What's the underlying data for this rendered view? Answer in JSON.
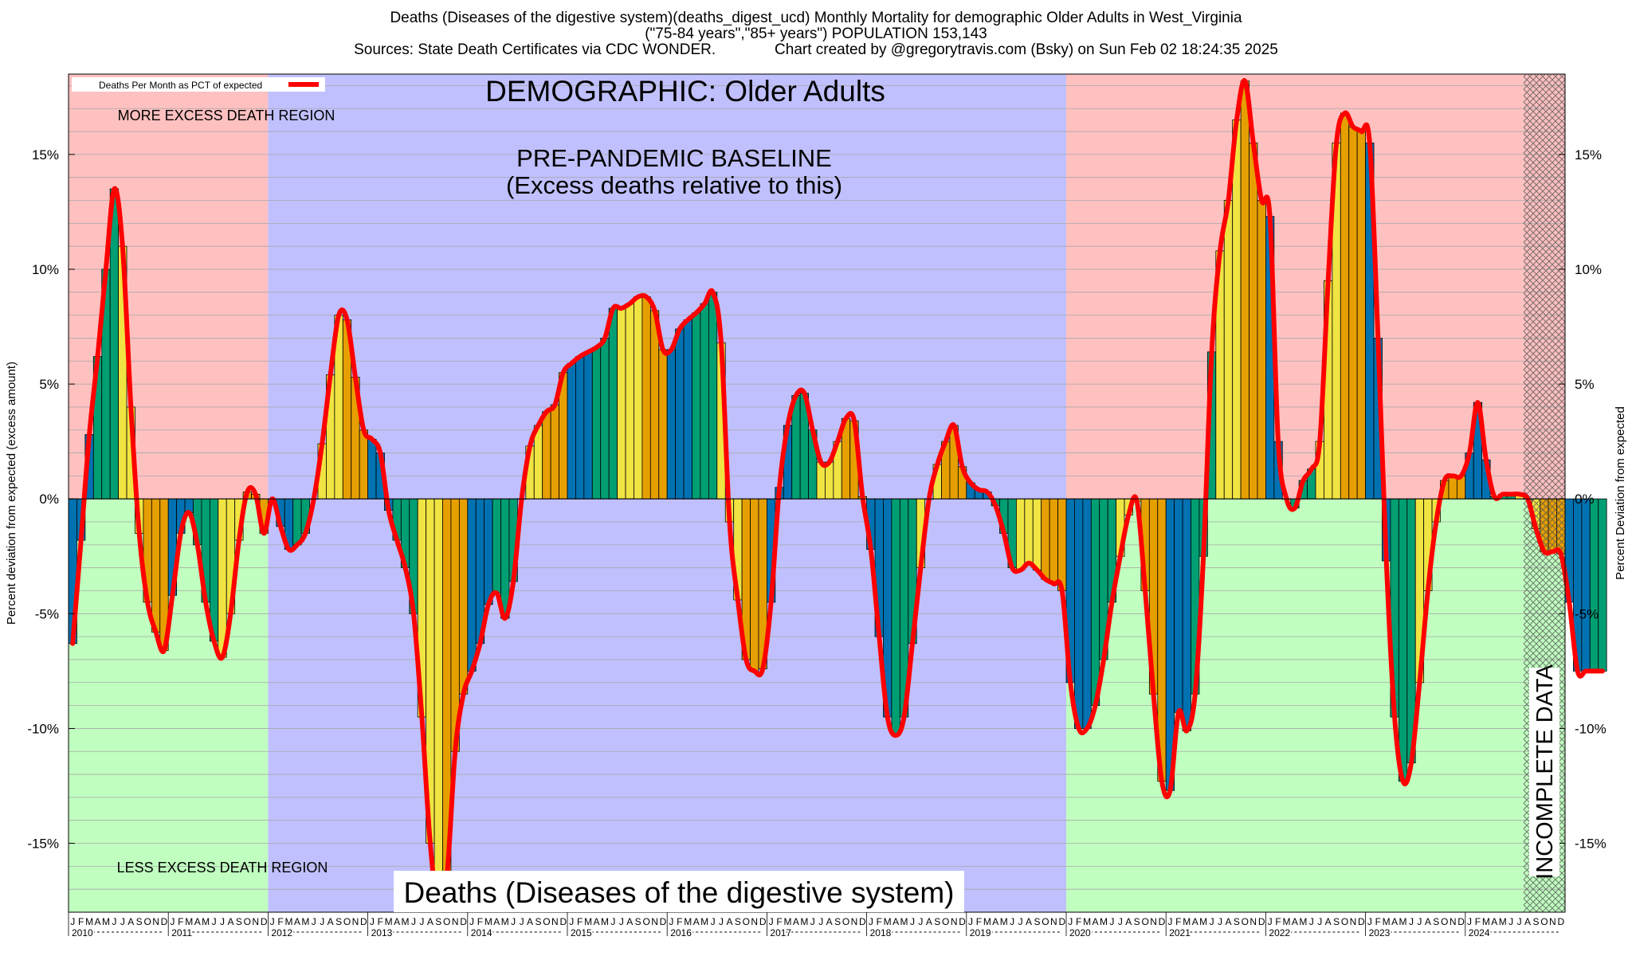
{
  "header": {
    "line1": "Deaths (Diseases of the digestive system)(deaths_digest_ucd) Monthly Mortality for demographic Older Adults in West_Virginia",
    "line2": "(\"75-84 years\",\"85+ years\") POPULATION 153,143",
    "line3": "Sources: State Death Certificates via CDC WONDER.              Chart created by @gregorytravis.com (Bsky) on Sun Feb 02 18:24:35 2025"
  },
  "chart_data": {
    "type": "bar",
    "title": "DEMOGRAPHIC: Older Adults",
    "subtitle": "Deaths (Diseases of the digestive system)",
    "ylabel": "Percent deviation from expected (excess amount)",
    "ylabel_right": "Percent Deviation from expected",
    "ylim": [
      -18,
      18.5
    ],
    "y_ticks": [
      15,
      10,
      5,
      0,
      -5,
      -10,
      -15
    ],
    "y_tick_labels": [
      "15%",
      "10%",
      "5%",
      "0%",
      "-5%",
      "-10%",
      "-15%"
    ],
    "grid": true,
    "legend": {
      "placement": "top-left",
      "label": "Deaths Per Month as PCT of expected",
      "color": "#ff0000"
    },
    "region_labels": {
      "more": "MORE EXCESS DEATH REGION",
      "less": "LESS EXCESS DEATH REGION",
      "baseline_line1": "PRE-PANDEMIC BASELINE",
      "baseline_line2": "(Excess deaths relative to this)",
      "incomplete": "INCOMPLETE DATA"
    },
    "month_letters": [
      "J",
      "F",
      "M",
      "A",
      "M",
      "J",
      "J",
      "A",
      "S",
      "O",
      "N",
      "D"
    ],
    "years": [
      2010,
      2011,
      2012,
      2013,
      2014,
      2015,
      2016,
      2017,
      2018,
      2019,
      2020,
      2021,
      2022,
      2023,
      2024
    ],
    "baseline_period": [
      "2012-01",
      "2019-12"
    ],
    "incomplete_period": [
      "2024-08",
      "2024-12"
    ],
    "bar_colors": [
      "#0072b2",
      "#009e73",
      "#f0e442",
      "#e69f00"
    ],
    "line_color": "#ff0000",
    "values": [
      -6.3,
      -1.8,
      2.8,
      6.2,
      10.0,
      13.5,
      11.0,
      4.0,
      -1.5,
      -4.5,
      -5.8,
      -6.6,
      -4.2,
      -1.5,
      -0.6,
      -2.0,
      -4.5,
      -6.2,
      -6.9,
      -5.0,
      -1.8,
      0.3,
      0.2,
      -1.5,
      0.0,
      -1.2,
      -2.2,
      -2.0,
      -1.5,
      0.0,
      2.4,
      5.4,
      8.0,
      7.8,
      5.3,
      3.0,
      2.6,
      2.0,
      -0.5,
      -1.8,
      -3.0,
      -5.0,
      -9.5,
      -15.0,
      -17.8,
      -16.5,
      -11.0,
      -8.5,
      -7.5,
      -6.3,
      -4.6,
      -4.1,
      -5.2,
      -3.6,
      0.0,
      2.3,
      3.2,
      3.8,
      4.1,
      5.5,
      5.9,
      6.2,
      6.4,
      6.6,
      7.0,
      8.3,
      8.3,
      8.5,
      8.8,
      8.8,
      8.2,
      6.5,
      6.5,
      7.4,
      7.8,
      8.1,
      8.5,
      9.0,
      6.8,
      -1.0,
      -4.4,
      -7.0,
      -7.5,
      -7.4,
      -4.5,
      0.5,
      3.2,
      4.5,
      4.6,
      3.0,
      1.6,
      1.6,
      2.5,
      3.5,
      3.4,
      0.1,
      -2.2,
      -6.0,
      -9.5,
      -10.3,
      -9.5,
      -6.3,
      -3.0,
      0.0,
      1.5,
      2.5,
      3.2,
      1.4,
      0.7,
      0.4,
      0.3,
      -0.3,
      -1.5,
      -3.0,
      -3.1,
      -2.8,
      -3.1,
      -3.5,
      -3.7,
      -4.0,
      -8.0,
      -10.0,
      -10.0,
      -9.0,
      -7.0,
      -4.5,
      -2.5,
      -0.7,
      -0.1,
      -4.0,
      -8.5,
      -12.3,
      -12.7,
      -9.3,
      -10.1,
      -8.5,
      -2.5,
      6.4,
      10.8,
      13.0,
      16.5,
      18.2,
      15.5,
      13.0,
      12.3,
      2.5,
      0.0,
      -0.4,
      0.8,
      1.3,
      2.5,
      9.5,
      15.5,
      16.8,
      16.2,
      16.0,
      15.5,
      7.0,
      -2.7,
      -9.5,
      -12.3,
      -11.5,
      -8.0,
      -4.0,
      -1.0,
      0.8,
      1.0,
      1.0,
      2.0,
      4.2,
      1.7,
      0.1,
      0.2,
      0.2,
      0.2,
      0.0,
      -1.3,
      -2.3,
      -2.3,
      -2.4,
      -4.5,
      -7.5,
      -7.5,
      -7.5,
      -7.5
    ]
  }
}
